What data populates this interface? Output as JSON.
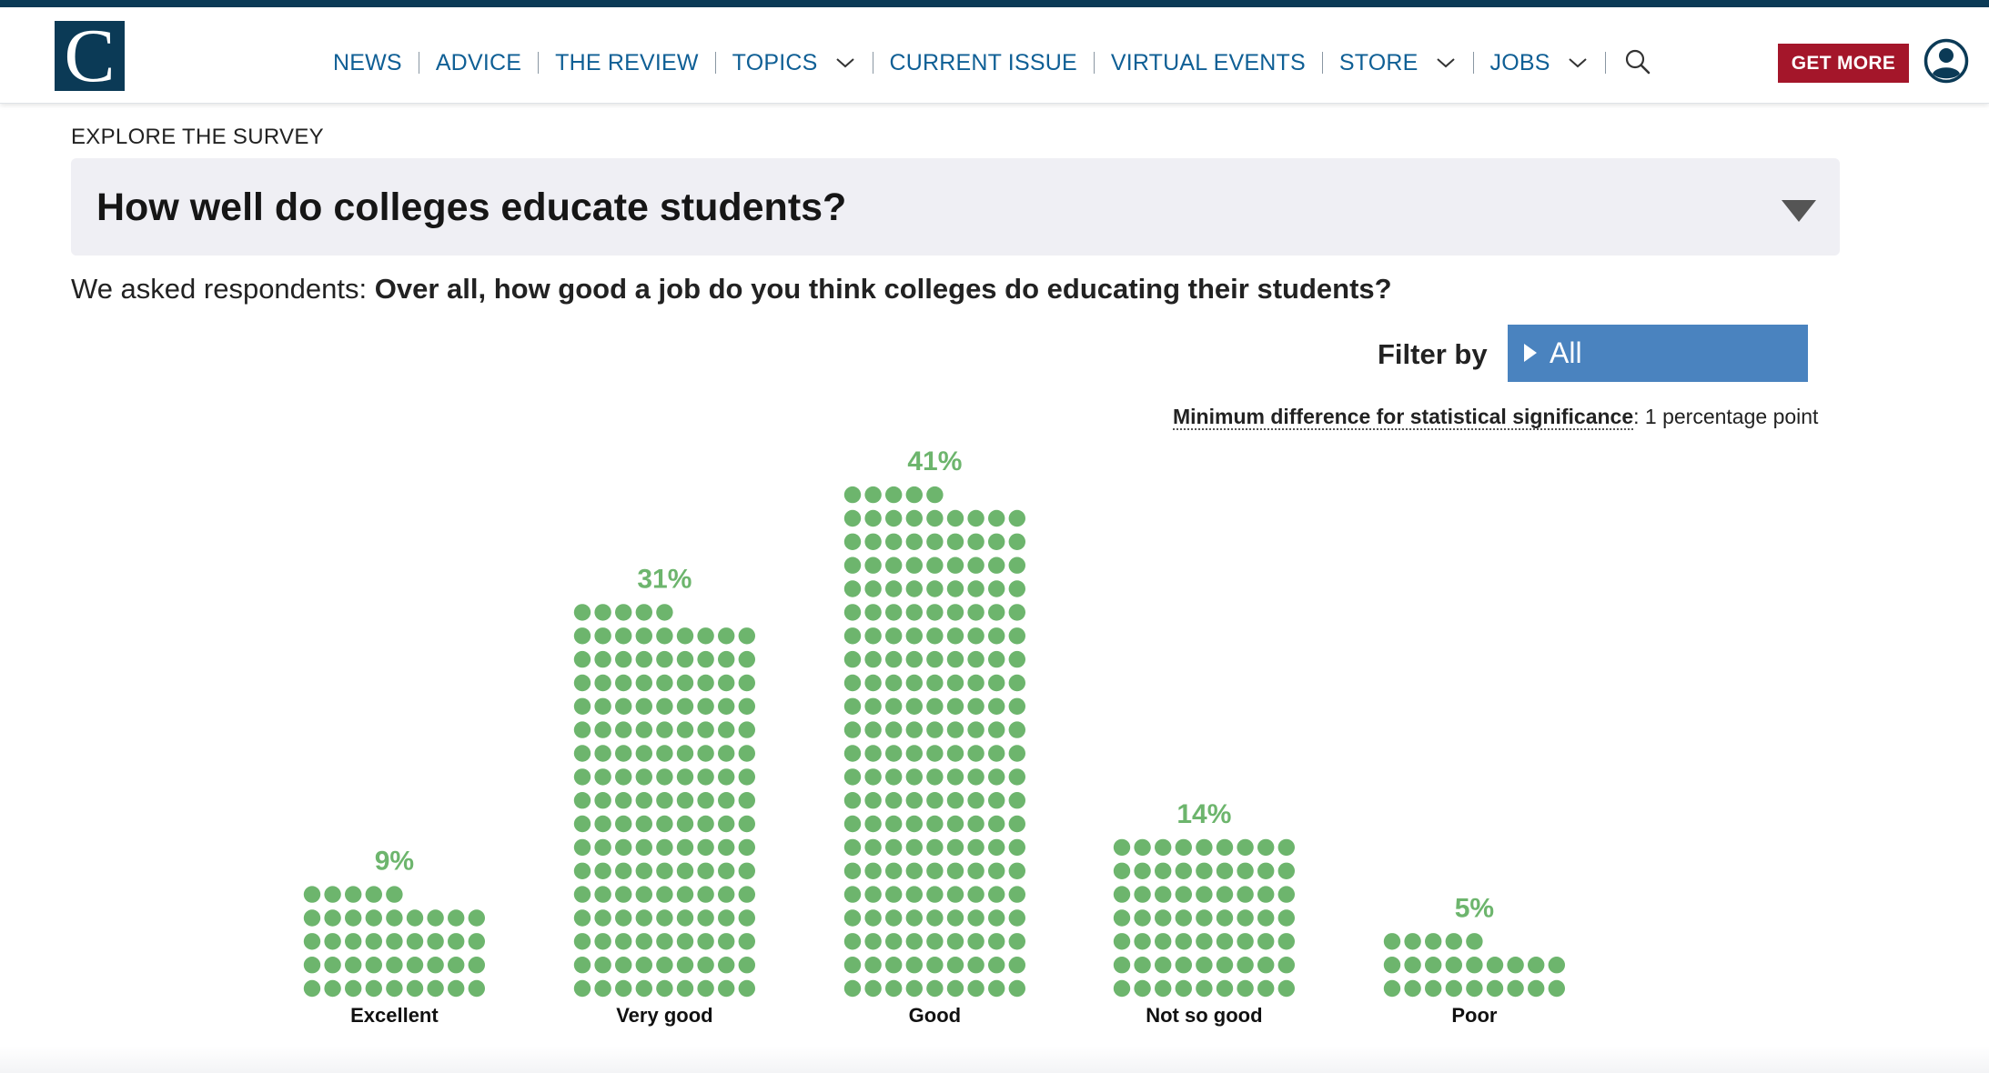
{
  "site": {
    "logo_letter": "C",
    "nav": [
      {
        "label": "NEWS",
        "dropdown": false
      },
      {
        "label": "ADVICE",
        "dropdown": false
      },
      {
        "label": "THE REVIEW",
        "dropdown": false
      },
      {
        "label": "TOPICS",
        "dropdown": true
      },
      {
        "label": "CURRENT ISSUE",
        "dropdown": false
      },
      {
        "label": "VIRTUAL EVENTS",
        "dropdown": false
      },
      {
        "label": "STORE",
        "dropdown": true
      },
      {
        "label": "JOBS",
        "dropdown": true
      }
    ],
    "search_icon": "search-icon",
    "account_icon": "user-account-icon",
    "cta_label": "GET MORE",
    "colors": {
      "brand": "#0b3a56",
      "nav_link": "#0f5f95",
      "cta": "#a4162a",
      "dots": "#6db56d",
      "filter": "#4a83bf"
    }
  },
  "survey": {
    "section_label": "EXPLORE THE SURVEY",
    "question_title": "How well do colleges educate students?",
    "asked_prefix": "We asked respondents:",
    "asked_question": "Over all, how good a job do you think colleges do educating their students?",
    "filter_label": "Filter by",
    "filter_value": "All",
    "min_diff_label": "Minimum difference for statistical significance",
    "min_diff_value": ": 1 percentage point"
  },
  "chart_data": {
    "type": "bar",
    "style": "dot-array, one dot per 1% (well over 1 dot per percent as drawn), 9 dots per row, filled bottom-up",
    "categories": [
      "Excellent",
      "Very good",
      "Good",
      "Not so good",
      "Poor"
    ],
    "values": [
      9,
      31,
      41,
      14,
      5
    ],
    "value_labels": [
      "9%",
      "31%",
      "41%",
      "14%",
      "5%"
    ],
    "dots_per_row": 9,
    "dot_counts": [
      41,
      149,
      194,
      63,
      23
    ],
    "unit": "%",
    "color": "#6db56d"
  }
}
